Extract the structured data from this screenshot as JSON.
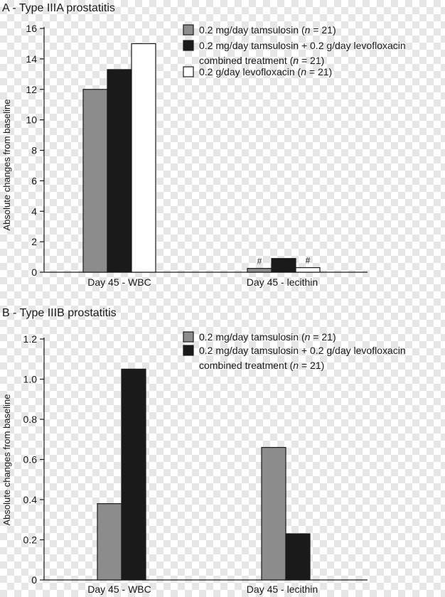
{
  "chart_data": [
    {
      "type": "bar",
      "title": "A - Type IIIA prostatitis",
      "ylabel": "Absolute changes from baseline",
      "ylim": [
        0,
        16
      ],
      "yticks": [
        "0",
        "2",
        "4",
        "6",
        "8",
        "10",
        "12",
        "14",
        "16"
      ],
      "categories": [
        "Day 45 - WBC",
        "Day 45 - lecithin"
      ],
      "series": [
        {
          "name": "0.2 mg/day tamsulosin (n = 21)",
          "legend_text": "0.2 mg/day tamsulosin (",
          "legend_n": "n",
          "legend_tail": " = 21)",
          "color": "#8c8c8c",
          "values": [
            12,
            0.25
          ]
        },
        {
          "name": "0.2 mg/day tamsulosin + 0.2 g/day levofloxacin combined treatment (n = 21)",
          "legend_text": "0.2 mg/day tamsulosin + 0.2 g/day levofloxacin",
          "legend_text2": "combined treatment (",
          "legend_n": "n",
          "legend_tail": " = 21)",
          "color": "#1a1a1a",
          "values": [
            13.3,
            0.9
          ]
        },
        {
          "name": "0.2 g/day levofloxacin (n = 21)",
          "legend_text": "0.2 g/day levofloxacin (",
          "legend_n": "n",
          "legend_tail": " = 21)",
          "color": "#ffffff",
          "values": [
            15,
            0.3
          ]
        }
      ],
      "annotations": [
        "#",
        "#"
      ]
    },
    {
      "type": "bar",
      "title": "B - Type IIIB prostatitis",
      "ylabel": "Absolute changes from baseline",
      "ylim": [
        0,
        1.2
      ],
      "yticks": [
        "0",
        "0.2",
        "0.4",
        "0.6",
        "0.8",
        "1.0",
        "1.2"
      ],
      "categories": [
        "Day 45 - WBC",
        "Day 45 - lecithin"
      ],
      "series": [
        {
          "name": "0.2 mg/day tamsulosin (n = 21)",
          "legend_text": "0.2 mg/day tamsulosin (",
          "legend_n": "n",
          "legend_tail": " = 21)",
          "color": "#8c8c8c",
          "values": [
            0.38,
            0.66
          ]
        },
        {
          "name": "0.2 mg/day tamsulosin + 0.2 g/day levofloxacin combined treatment (n = 21)",
          "legend_text": "0.2 mg/day tamsulosin + 0.2 g/day levofloxacin",
          "legend_text2": "combined treatment (",
          "legend_n": "n",
          "legend_tail": " = 21)",
          "color": "#1a1a1a",
          "values": [
            1.05,
            0.23
          ]
        }
      ],
      "annotations": []
    }
  ]
}
